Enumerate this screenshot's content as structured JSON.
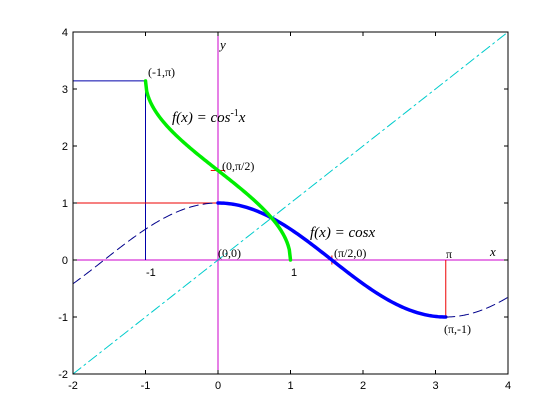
{
  "chart_data": {
    "type": "line",
    "title": "",
    "xlabel": "x",
    "ylabel": "y",
    "xlim": [
      -2,
      4
    ],
    "ylim": [
      -2,
      4
    ],
    "grid": false,
    "x_ticks": [
      -2,
      -1,
      0,
      1,
      2,
      3,
      4
    ],
    "y_ticks": [
      -2,
      -1,
      0,
      1,
      2,
      3,
      4
    ],
    "x_tick_labels": [
      "-2",
      "-1",
      "0",
      "1",
      "2",
      "3",
      "4"
    ],
    "y_tick_labels": [
      "-2",
      "-1",
      "0",
      "1",
      "2",
      "3",
      "4"
    ],
    "series": [
      {
        "style": "dashed",
        "color": "#00008b",
        "function": "cos(x)",
        "x": [
          -2.0,
          -1.5,
          -1.0,
          -0.5,
          0.0
        ],
        "y": [
          -0.416,
          0.071,
          0.54,
          0.878,
          1.0
        ]
      },
      {
        "style": "thick",
        "color": "#0000ff",
        "function": "cos(x)",
        "x": [
          0.0,
          0.5,
          1.0,
          1.5708,
          2.0,
          2.5,
          3.1416
        ],
        "y": [
          1.0,
          0.878,
          0.54,
          0.0,
          -0.416,
          -0.801,
          -1.0
        ]
      },
      {
        "style": "dashed",
        "color": "#00008b",
        "function": "cos(x)",
        "x": [
          3.1416,
          3.5,
          4.0
        ],
        "y": [
          -1.0,
          -0.936,
          -0.654
        ]
      },
      {
        "style": "thick",
        "color": "#00ee00",
        "function": "arccos(x)",
        "x": [
          -1.0,
          -0.5,
          0.0,
          0.5,
          1.0
        ],
        "y": [
          3.1416,
          2.094,
          1.5708,
          1.047,
          0.0
        ]
      },
      {
        "style": "dashdot",
        "color": "#00cccc",
        "function": "y = x",
        "x": [
          -2.0,
          4.0
        ],
        "y": [
          -2.0,
          4.0
        ]
      }
    ],
    "annotations": {
      "arccos_label": {
        "prefix": "f(x) = cos",
        "sup": "-1",
        "suffix": "x"
      },
      "cos_label": {
        "prefix": "f(x) = cos",
        "suffix": "x"
      },
      "points": [
        {
          "text": "(-1,π)"
        },
        {
          "text": "(0,π/2)"
        },
        {
          "text": "(0,0)"
        },
        {
          "text": "(π/2,0)"
        },
        {
          "text": "(π,-1)"
        },
        {
          "text": "π"
        }
      ],
      "tick_under_minus1": "-1",
      "tick_under_1": "1"
    },
    "colors": {
      "axes_lines": "#cc00cc",
      "guide_blue": "#0000aa",
      "guide_red": "#ee0000"
    }
  }
}
